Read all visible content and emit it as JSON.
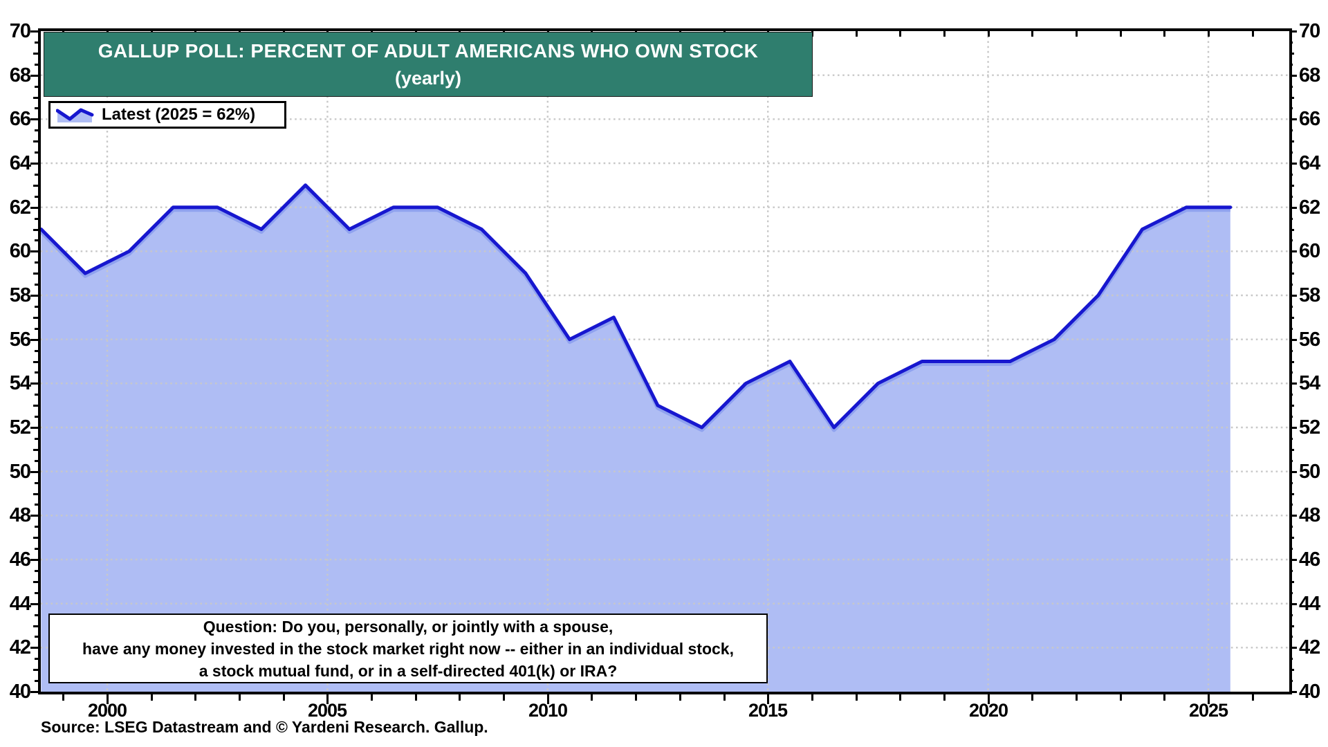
{
  "header": {
    "title": "GALLUP POLL: PERCENT OF ADULT AMERICANS WHO OWN STOCK",
    "subtitle": "(yearly)"
  },
  "legend": {
    "label": "Latest (2025 = 62%)"
  },
  "question_box": {
    "line1": "Question: Do you, personally, or jointly with a spouse,",
    "line2": "have any money invested in the stock market right now -- either in an individual stock,",
    "line3": "a stock mutual fund, or in a self-directed 401(k) or IRA?"
  },
  "source": "Source: LSEG Datastream and © Yardeni Research. Gallup.",
  "colors": {
    "line": "#1717cf",
    "line_halo": "#8fa2ef",
    "fill": "#afbdf4",
    "grid": "#c8c8c8",
    "title_bg": "#2f7e6e",
    "frame": "#000000"
  },
  "chart_data": {
    "type": "area",
    "title": "GALLUP POLL: PERCENT OF ADULT AMERICANS WHO OWN STOCK (yearly)",
    "x": [
      1998,
      1999,
      2000,
      2001,
      2002,
      2003,
      2004,
      2005,
      2006,
      2007,
      2008,
      2009,
      2010,
      2011,
      2012,
      2013,
      2014,
      2015,
      2016,
      2017,
      2018,
      2019,
      2020,
      2021,
      2022,
      2023,
      2024,
      2025
    ],
    "values": [
      61,
      59,
      60,
      62,
      62,
      61,
      63,
      61,
      62,
      62,
      61,
      59,
      56,
      57,
      53,
      52,
      54,
      55,
      52,
      54,
      55,
      55,
      55,
      56,
      58,
      61,
      62,
      62
    ],
    "latest_label": "Latest (2025 = 62%)",
    "ylim": [
      40,
      70
    ],
    "y_tick_labels": [
      70,
      68,
      66,
      64,
      62,
      60,
      58,
      56,
      54,
      52,
      50,
      48,
      46,
      44,
      42,
      40
    ],
    "x_tick_labels": [
      2000,
      2005,
      2010,
      2015,
      2020,
      2025
    ],
    "grid": true,
    "legend_position": "top-left",
    "ylabel": "",
    "xlabel": ""
  }
}
